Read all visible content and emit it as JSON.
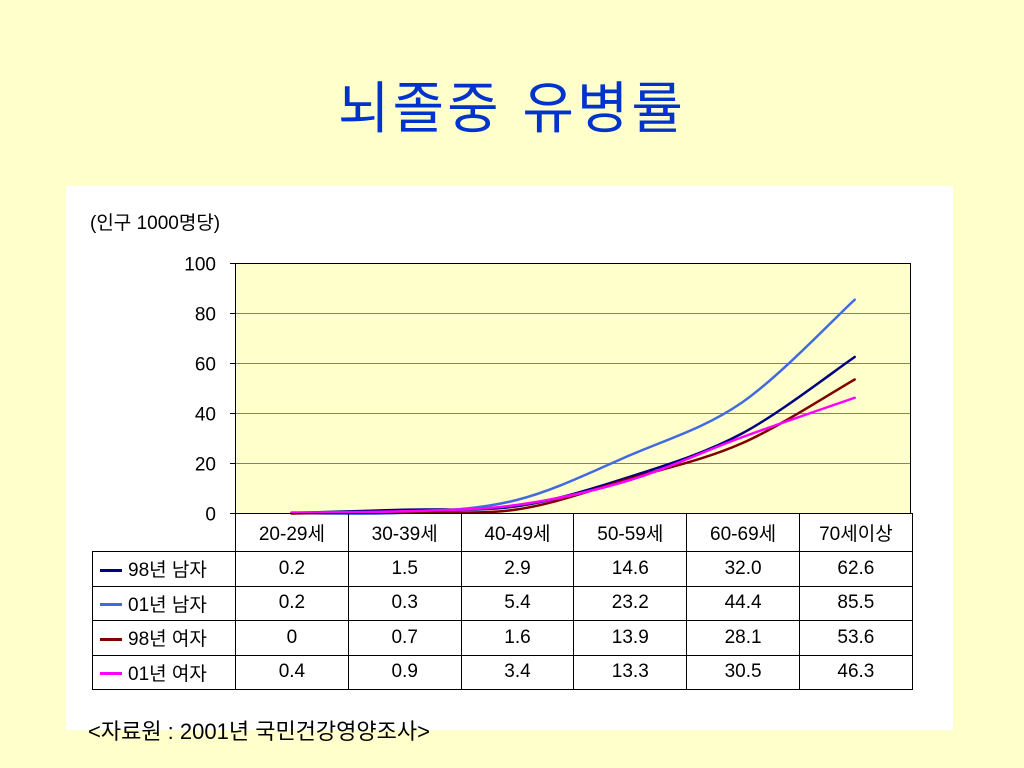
{
  "slide": {
    "background": "#FFFFCC",
    "title_color": "#0033CC",
    "source": "<자료원 : 2001년 국민건강영양조사>"
  },
  "chart_data": {
    "type": "line",
    "title": "뇌졸중 유병률",
    "ylabel": "(인구 1000명당)",
    "categories": [
      "20-29세",
      "30-39세",
      "40-49세",
      "50-59세",
      "60-69세",
      "70세이상"
    ],
    "ylim": [
      0,
      100
    ],
    "yticks": [
      0,
      20,
      40,
      60,
      80,
      100
    ],
    "grid": true,
    "smooth": true,
    "legend": "bottom-left",
    "plot_background": "#FFFFCC",
    "series": [
      {
        "name": "98년 남자",
        "color": "#000080",
        "values": [
          0.2,
          1.5,
          2.9,
          14.6,
          32.0,
          62.6
        ],
        "labels": [
          "0.2",
          "1.5",
          "2.9",
          "14.6",
          "32.0",
          "62.6"
        ]
      },
      {
        "name": "01년 남자",
        "color": "#4169E1",
        "values": [
          0.2,
          0.3,
          5.4,
          23.2,
          44.4,
          85.5
        ],
        "labels": [
          "0.2",
          "0.3",
          "5.4",
          "23.2",
          "44.4",
          "85.5"
        ]
      },
      {
        "name": "98년 여자",
        "color": "#800000",
        "values": [
          0,
          0.7,
          1.6,
          13.9,
          28.1,
          53.6
        ],
        "labels": [
          "0",
          "0.7",
          "1.6",
          "13.9",
          "28.1",
          "53.6"
        ]
      },
      {
        "name": "01년 여자",
        "color": "#FF00FF",
        "values": [
          0.4,
          0.9,
          3.4,
          13.3,
          30.5,
          46.3
        ],
        "labels": [
          "0.4",
          "0.9",
          "3.4",
          "13.3",
          "30.5",
          "46.3"
        ]
      }
    ]
  }
}
